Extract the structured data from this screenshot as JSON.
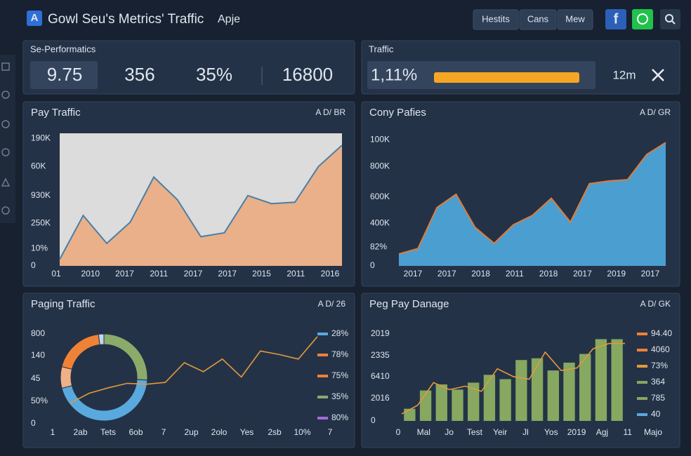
{
  "header": {
    "logo": "A",
    "title": "Gowl Seu's Metrics' Traffic",
    "subtitle": "Apje",
    "buttons": [
      "Hestits",
      "Cans",
      "Mew"
    ]
  },
  "performance": {
    "title": "Se-Performatics",
    "metrics": [
      "9.75",
      "356",
      "35%",
      "16800"
    ]
  },
  "traffic": {
    "title": "Traffic",
    "value": "1,11%",
    "time": "12m"
  },
  "panels": [
    {
      "title": "Pay Traffic",
      "badge": "A D/ BR",
      "chart": {
        "type": "area",
        "color": "#e9b08a",
        "line_color": "#4a7fa6",
        "background": "#dcdcdc",
        "ylim": [
          0,
          100
        ],
        "yticks": [
          {
            "value": 96,
            "label": "190K"
          },
          {
            "value": 75,
            "label": "60K"
          },
          {
            "value": 53,
            "label": "930K"
          },
          {
            "value": 32,
            "label": "250K"
          },
          {
            "value": 13,
            "label": "10%"
          },
          0
        ],
        "xlabels": [
          "01",
          "2010",
          "2017",
          "2011",
          "2017",
          "2017",
          "2015",
          "2011",
          "2016"
        ],
        "values": [
          5,
          38,
          17,
          33,
          67,
          50,
          22,
          25,
          53,
          47,
          48,
          75,
          91
        ]
      }
    },
    {
      "title": "Cony Pafies",
      "badge": "A D/ GR",
      "chart": {
        "type": "area",
        "color": "#4a9fd0",
        "line_color": "#e07b39",
        "ylim": [
          0,
          100
        ],
        "yticks": [
          {
            "value": 95,
            "label": "100K"
          },
          {
            "value": 75,
            "label": "800K"
          },
          {
            "value": 52,
            "label": "600K"
          },
          {
            "value": 32,
            "label": "400K"
          },
          {
            "value": 14,
            "label": "82%"
          },
          0
        ],
        "xlabels": [
          "2017",
          "2017",
          "2018",
          "2011",
          "2018",
          "2017",
          "2019",
          "2017"
        ],
        "values": [
          9,
          13,
          44,
          54,
          29,
          17,
          31,
          38,
          51,
          33,
          62,
          64,
          65,
          84,
          93
        ]
      }
    },
    {
      "title": "Paging Traffic",
      "badge": "A D/ 26",
      "chart": {
        "type": "donut",
        "values": [
          26,
          45,
          8,
          19,
          2
        ],
        "colors": [
          "#8aab6a",
          "#5aa9de",
          "#f0b088",
          "#f08236",
          "#b9d9ee"
        ],
        "ylim": [
          0,
          100
        ],
        "yticks": [
          {
            "value": 100,
            "label": "800"
          },
          {
            "value": 76,
            "label": "140"
          },
          {
            "value": 50,
            "label": "45"
          },
          {
            "value": 25,
            "label": "50%"
          },
          0
        ],
        "xlabels": [
          "1",
          "2ab",
          "Tets",
          "6ob",
          "7",
          "2up",
          "2olo",
          "Yes",
          "2sb",
          "10%",
          "7"
        ],
        "line": {
          "color": "#e39a3a",
          "values": [
            23,
            34,
            40,
            45,
            44,
            46,
            68,
            58,
            72,
            52,
            81,
            77,
            72,
            97
          ]
        },
        "legend": [
          {
            "label": "28%",
            "color": "#5aa9de"
          },
          {
            "label": "78%",
            "color": "#f08236"
          },
          {
            "label": "75%",
            "color": "#f08236"
          },
          {
            "label": "35%",
            "color": "#8aab6a"
          },
          {
            "label": "80%",
            "color": "#a46ad8"
          }
        ]
      }
    },
    {
      "title": "Peg Pay Danage",
      "badge": "A D/ GK",
      "chart": {
        "type": "bar",
        "color": "#86a860",
        "ylim": [
          0,
          100
        ],
        "yticks": [
          {
            "value": 100,
            "label": "2019"
          },
          {
            "value": 75,
            "label": "2335"
          },
          {
            "value": 51,
            "label": "6410"
          },
          {
            "value": 26,
            "label": "2016"
          },
          0
        ],
        "xlabels": [
          "0",
          "Mal",
          "Jo",
          "Test",
          "Yeir",
          "Jl",
          "Yos",
          "2019",
          "Agj",
          "11",
          "Majo"
        ],
        "values": [
          14,
          35,
          42,
          36,
          44,
          53,
          48,
          70,
          72,
          58,
          67,
          77,
          94,
          94
        ],
        "line": {
          "color": "#e39a3a",
          "values": [
            8,
            18,
            44,
            36,
            40,
            34,
            60,
            51,
            48,
            79,
            58,
            61,
            83,
            89,
            89
          ]
        },
        "legend": [
          {
            "label": "94.40",
            "color": "#f08236"
          },
          {
            "label": "4060",
            "color": "#f08236"
          },
          {
            "label": "73%",
            "color": "#e39a3a"
          },
          {
            "label": "364",
            "color": "#86a860"
          },
          {
            "label": "785",
            "color": "#86a860"
          },
          {
            "label": "40",
            "color": "#5aa9de"
          }
        ]
      }
    }
  ]
}
